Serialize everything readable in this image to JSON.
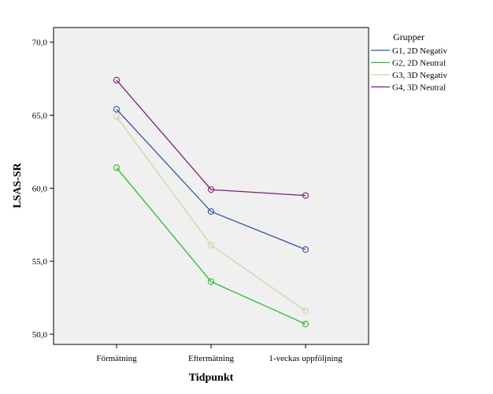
{
  "chart_data": {
    "type": "line",
    "xlabel": "Tidpunkt",
    "ylabel": "LSAS-SR",
    "categories": [
      "Förmätning",
      "Eftermätning",
      "1-veckas uppföljning"
    ],
    "ylim": [
      49.3,
      71.0
    ],
    "yticks": [
      "50,0",
      "55,0",
      "60,0",
      "65,0",
      "70,0"
    ],
    "ytick_values": [
      50,
      55,
      60,
      65,
      70
    ],
    "grid": false,
    "background": "#f0f0f0",
    "legend": {
      "title": "Grupper",
      "position": "right"
    },
    "series": [
      {
        "name": "G1, 2D Negativ",
        "color": "#3a55a5",
        "values": [
          65.4,
          58.4,
          55.8
        ]
      },
      {
        "name": "G2, 2D Neutral",
        "color": "#2eb82e",
        "values": [
          61.4,
          53.6,
          50.7
        ]
      },
      {
        "name": "G3, 3D Negativ",
        "color": "#d6d0a0",
        "values": [
          64.9,
          56.1,
          51.6
        ]
      },
      {
        "name": "G4, 3D Neutral",
        "color": "#7a1f75",
        "values": [
          67.4,
          59.9,
          59.5
        ]
      }
    ]
  }
}
